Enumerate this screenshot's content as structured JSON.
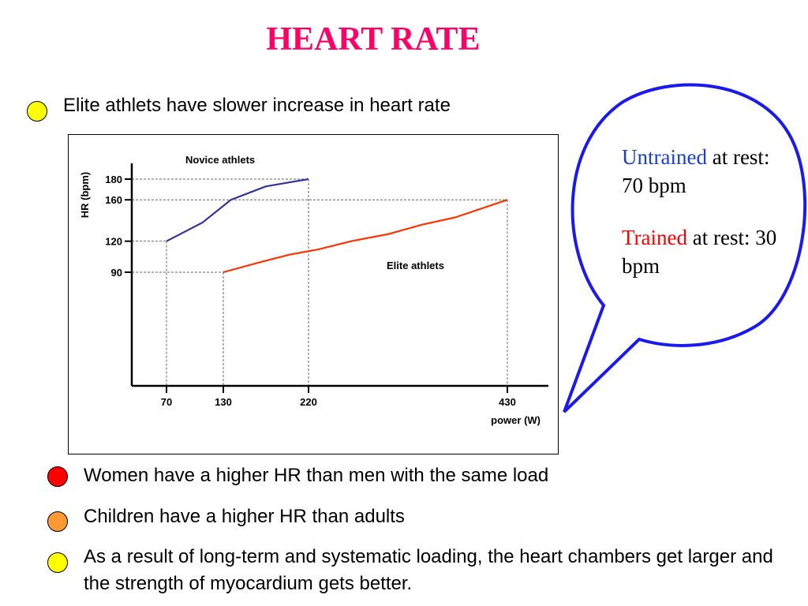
{
  "slide": {
    "title": "HEART RATE",
    "title_color": "#ff0066"
  },
  "bullets": {
    "top": {
      "text": "Elite athlets have slower increase in heart rate",
      "color": "#ffff00"
    },
    "b1": {
      "text": "Women have a higher HR than men with the same load",
      "color": "#ff0000"
    },
    "b2": {
      "text": "Children have a higher HR than adults",
      "color": "#ff9933"
    },
    "b3": {
      "text": "As a result of long-term and systematic loading, the heart chambers get larger and the strength of myocardium gets better.",
      "color": "#ffff00"
    }
  },
  "callout": {
    "untrained_word": "Untrained",
    "untrained_rest": " at rest: 70 bpm",
    "untrained_color": "#1a3fcc",
    "trained_word": "Trained",
    "trained_rest": " at rest: 30 bpm",
    "trained_color": "#ff0000",
    "border_color": "#1a1aee"
  },
  "chart_data": {
    "type": "line",
    "xlabel": "power (W)",
    "ylabel": "HR (bpm)",
    "x_ticks": [
      70,
      130,
      220,
      430
    ],
    "y_ticks": [
      90,
      120,
      160,
      180
    ],
    "series": [
      {
        "name": "Novice athlets",
        "color": "#333399",
        "points": [
          [
            70,
            120
          ],
          [
            108,
            138
          ],
          [
            138,
            160
          ],
          [
            175,
            173
          ],
          [
            220,
            180
          ]
        ]
      },
      {
        "name": "Elite athlets",
        "color": "#ff3300",
        "points": [
          [
            130,
            90
          ],
          [
            170,
            100
          ],
          [
            200,
            107
          ],
          [
            230,
            112
          ],
          [
            265,
            120
          ],
          [
            305,
            127
          ],
          [
            340,
            136
          ],
          [
            375,
            143
          ],
          [
            430,
            160
          ]
        ]
      }
    ],
    "reference_lines": [
      {
        "x": 70,
        "y": 120
      },
      {
        "x": 130,
        "y": 90
      },
      {
        "x": 220,
        "y": 180
      },
      {
        "x": 430,
        "y": 160
      }
    ]
  }
}
